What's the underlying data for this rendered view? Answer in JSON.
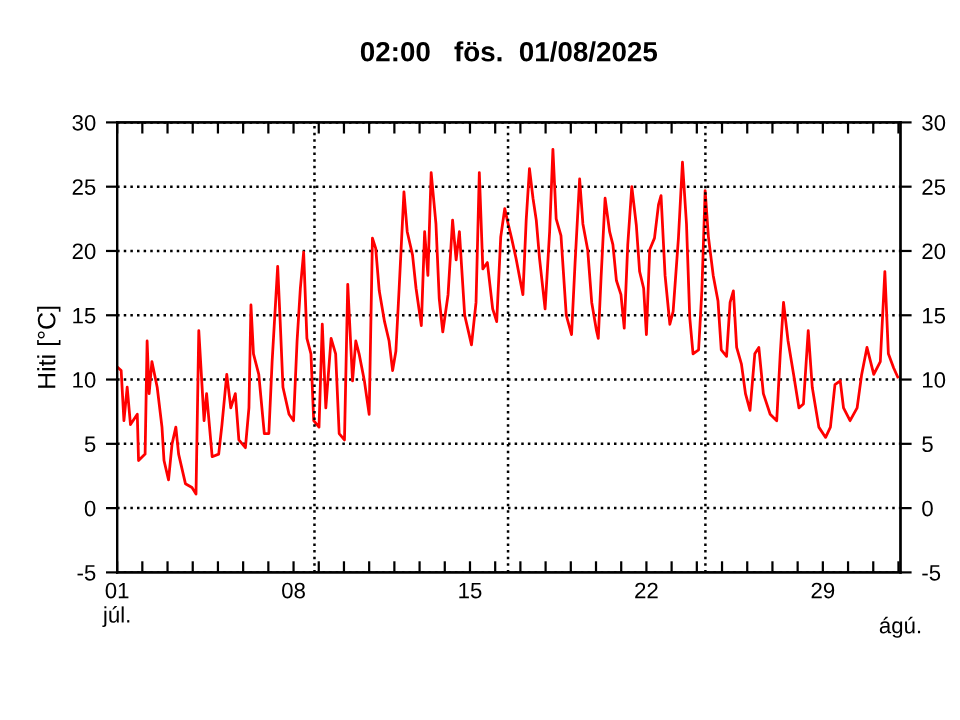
{
  "chart_data": {
    "type": "line",
    "title": "02:00   fös.  01/08/2025",
    "ylabel": "Hiti [°C]",
    "xlim": [
      1,
      32.08
    ],
    "ylim": [
      -5,
      30
    ],
    "y2lim": [
      -5,
      30
    ],
    "xticks": [
      {
        "value": 1,
        "label": "01\njúl."
      },
      {
        "value": 2,
        "label": null
      },
      {
        "value": 3,
        "label": null
      },
      {
        "value": 4,
        "label": null
      },
      {
        "value": 5,
        "label": null
      },
      {
        "value": 6,
        "label": null
      },
      {
        "value": 7,
        "label": null
      },
      {
        "value": 8,
        "label": "08"
      },
      {
        "value": 9,
        "label": null
      },
      {
        "value": 10,
        "label": null
      },
      {
        "value": 11,
        "label": null
      },
      {
        "value": 12,
        "label": null
      },
      {
        "value": 13,
        "label": null
      },
      {
        "value": 14,
        "label": null
      },
      {
        "value": 15,
        "label": "15"
      },
      {
        "value": 16,
        "label": null
      },
      {
        "value": 17,
        "label": null
      },
      {
        "value": 18,
        "label": null
      },
      {
        "value": 19,
        "label": null
      },
      {
        "value": 20,
        "label": null
      },
      {
        "value": 21,
        "label": null
      },
      {
        "value": 22,
        "label": "22"
      },
      {
        "value": 23,
        "label": null
      },
      {
        "value": 24,
        "label": null
      },
      {
        "value": 25,
        "label": null
      },
      {
        "value": 26,
        "label": null
      },
      {
        "value": 27,
        "label": null
      },
      {
        "value": 28,
        "label": null
      },
      {
        "value": 29,
        "label": "29"
      },
      {
        "value": 30,
        "label": null
      },
      {
        "value": 31,
        "label": null
      },
      {
        "value": 32,
        "label": null
      }
    ],
    "annotations": [
      "ágú."
    ],
    "yticks": [
      -5,
      0,
      5,
      10,
      15,
      20,
      25,
      30
    ],
    "y2ticks": [
      -5,
      0,
      5,
      10,
      15,
      20,
      25,
      30
    ],
    "grid": "y",
    "line_style": "solid",
    "ref_lines": [
      {
        "axis": "x",
        "value": 8.83,
        "label": null,
        "line_style": "dotted"
      },
      {
        "axis": "x",
        "value": 16.51,
        "label": null,
        "line_style": "dotted"
      },
      {
        "axis": "x",
        "value": 24.34,
        "label": null,
        "line_style": "dotted"
      }
    ],
    "series": [
      {
        "color": "#ff0000",
        "x": [
          1.05,
          1.16,
          1.27,
          1.4,
          1.53,
          1.8,
          1.85,
          2.11,
          2.19,
          2.27,
          2.38,
          2.59,
          2.78,
          2.86,
          3.04,
          3.18,
          3.33,
          3.44,
          3.71,
          3.97,
          4.13,
          4.24,
          4.45,
          4.55,
          4.77,
          5.03,
          5.16,
          5.35,
          5.51,
          5.69,
          5.83,
          6.09,
          6.23,
          6.31,
          6.41,
          6.62,
          6.84,
          7.02,
          7.15,
          7.37,
          7.47,
          7.58,
          7.82,
          8.0,
          8.14,
          8.27,
          8.4,
          8.53,
          8.69,
          8.8,
          9.01,
          9.14,
          9.28,
          9.49,
          9.67,
          9.81,
          10.02,
          10.15,
          10.34,
          10.47,
          10.6,
          10.81,
          11.0,
          11.13,
          11.26,
          11.4,
          11.61,
          11.79,
          11.93,
          12.06,
          12.19,
          12.38,
          12.51,
          12.72,
          12.86,
          13.07,
          13.2,
          13.33,
          13.46,
          13.65,
          13.78,
          13.92,
          14.13,
          14.31,
          14.45,
          14.58,
          14.79,
          15.06,
          15.24,
          15.37,
          15.51,
          15.69,
          15.9,
          16.06,
          16.22,
          16.38,
          16.49,
          16.65,
          16.83,
          17.1,
          17.23,
          17.36,
          17.5,
          17.63,
          17.76,
          17.98,
          18.16,
          18.29,
          18.42,
          18.61,
          18.82,
          19.03,
          19.17,
          19.35,
          19.48,
          19.67,
          19.83,
          20.02,
          20.09,
          20.2,
          20.36,
          20.54,
          20.67,
          20.81,
          20.99,
          21.12,
          21.26,
          21.42,
          21.6,
          21.73,
          21.89,
          22.0,
          22.13,
          22.32,
          22.48,
          22.58,
          22.74,
          22.93,
          23.06,
          23.27,
          23.43,
          23.59,
          23.72,
          23.85,
          24.07,
          24.2,
          24.33,
          24.46,
          24.65,
          24.84,
          24.97,
          25.18,
          25.32,
          25.45,
          25.58,
          25.77,
          25.93,
          26.11,
          26.3,
          26.46,
          26.64,
          26.91,
          27.17,
          27.31,
          27.44,
          27.62,
          27.84,
          28.05,
          28.23,
          28.42,
          28.58,
          28.84,
          29.11,
          29.3,
          29.48,
          29.69,
          29.82,
          30.08,
          30.36,
          30.54,
          30.75,
          31.02,
          31.28,
          31.46,
          31.6,
          31.81,
          31.97
        ],
        "values": [
          10.9,
          10.7,
          6.8,
          9.4,
          6.5,
          7.3,
          3.7,
          4.2,
          13.0,
          8.9,
          11.4,
          9.4,
          6.3,
          3.7,
          2.2,
          5.0,
          6.3,
          4.2,
          1.9,
          1.6,
          1.1,
          13.8,
          6.8,
          8.9,
          4.0,
          4.2,
          6.5,
          10.4,
          7.8,
          8.9,
          5.3,
          4.7,
          7.8,
          15.8,
          12.0,
          10.4,
          5.8,
          5.8,
          11.4,
          18.8,
          14.5,
          9.4,
          7.3,
          6.8,
          13.0,
          17.1,
          19.9,
          13.2,
          12.0,
          6.8,
          6.3,
          14.3,
          7.8,
          13.2,
          12.0,
          5.8,
          5.3,
          17.4,
          9.9,
          13.0,
          12.0,
          9.9,
          7.3,
          21.0,
          20.2,
          16.9,
          14.5,
          13.0,
          10.7,
          12.2,
          17.1,
          24.6,
          21.5,
          19.7,
          17.1,
          14.2,
          21.5,
          18.1,
          26.1,
          22.1,
          16.3,
          13.7,
          16.6,
          22.4,
          19.3,
          21.5,
          15.0,
          12.7,
          16.0,
          26.1,
          18.6,
          19.1,
          15.5,
          14.5,
          21.1,
          23.3,
          22.3,
          21.0,
          19.4,
          16.6,
          22.4,
          26.4,
          24.1,
          22.4,
          19.4,
          15.5,
          21.5,
          27.9,
          22.5,
          21.2,
          15.0,
          13.5,
          19.1,
          25.6,
          22.1,
          20.1,
          16.0,
          13.8,
          13.2,
          17.9,
          24.1,
          21.5,
          20.5,
          17.7,
          16.6,
          14.0,
          20.5,
          25.0,
          22.0,
          18.4,
          17.1,
          13.5,
          20.1,
          21.0,
          23.6,
          24.3,
          18.1,
          14.3,
          15.3,
          21.0,
          26.9,
          22.1,
          14.8,
          12.0,
          12.3,
          16.9,
          24.7,
          21.1,
          18.1,
          16.1,
          12.3,
          11.8,
          16.0,
          16.9,
          12.5,
          11.2,
          8.9,
          7.6,
          12.0,
          12.5,
          8.9,
          7.3,
          6.8,
          12.0,
          16.0,
          13.0,
          10.4,
          7.8,
          8.1,
          13.8,
          9.4,
          6.3,
          5.5,
          6.3,
          9.6,
          9.9,
          7.8,
          6.8,
          7.8,
          10.4,
          12.5,
          10.4,
          11.4,
          18.4,
          12.0,
          10.9,
          10.2
        ]
      }
    ]
  }
}
